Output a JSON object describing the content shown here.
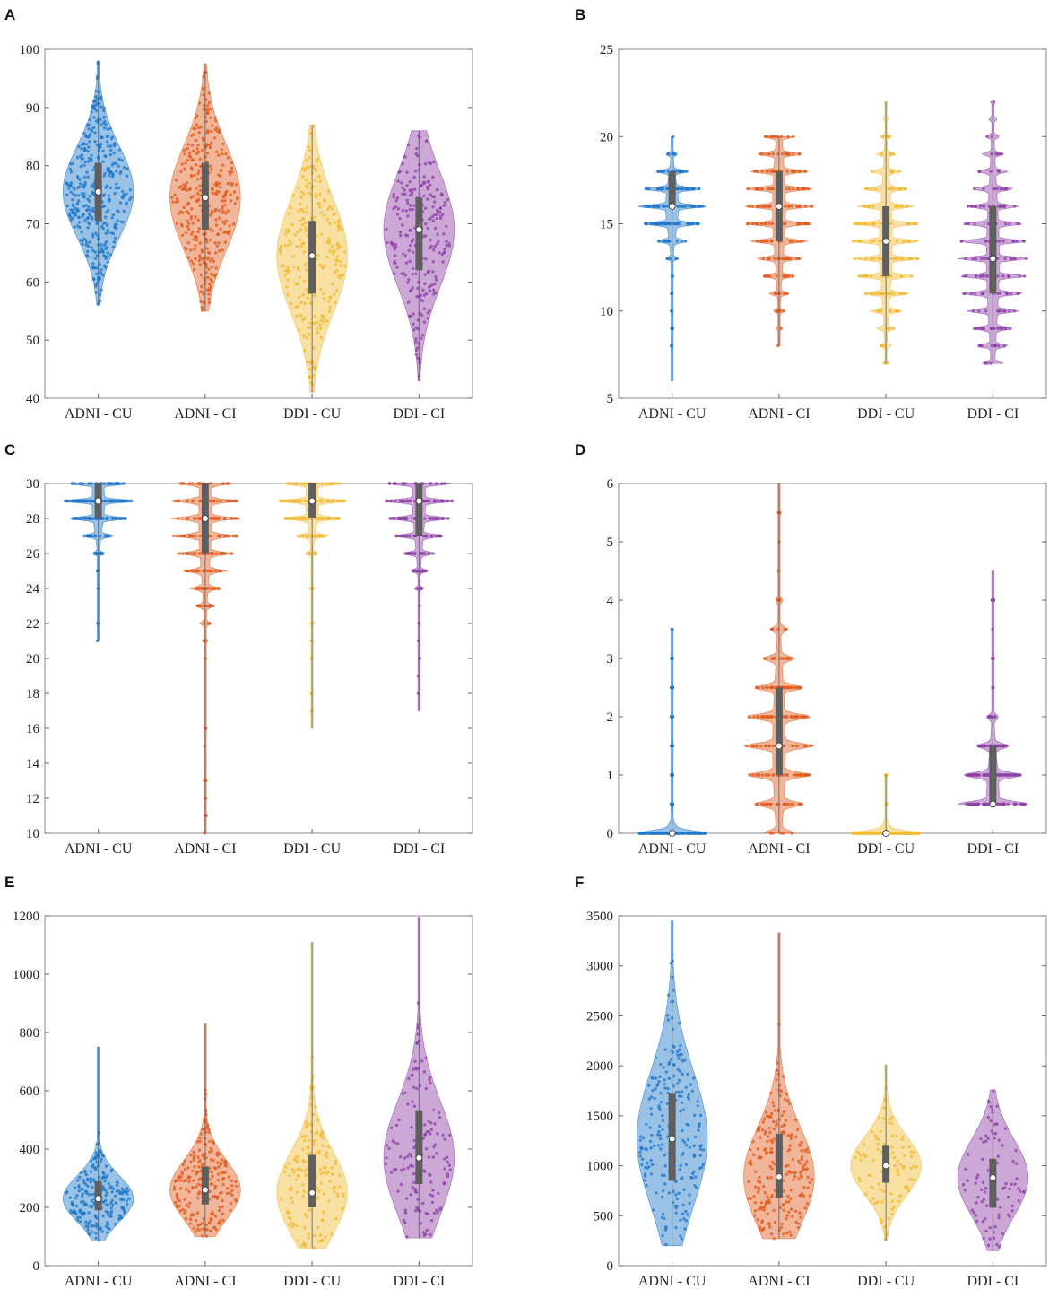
{
  "colors": {
    "ADNI - CU": "#1f77c8",
    "ADNI - CI": "#e05a1c",
    "DDI - CU": "#f0b930",
    "DDI - CI": "#8e3fa6",
    "box": "#5f5f5f"
  },
  "chart_data": [
    {
      "type": "violin",
      "panel": "A",
      "categories": [
        "ADNI - CU",
        "ADNI - CI",
        "DDI - CU",
        "DDI - CI"
      ],
      "ylim": [
        40,
        100
      ],
      "yticks": [
        40,
        50,
        60,
        70,
        80,
        90,
        100
      ],
      "series": [
        {
          "name": "ADNI - CU",
          "min": 56,
          "q1": 70.5,
          "median": 75.5,
          "q3": 80.5,
          "max": 98,
          "discrete": false,
          "density": 380
        },
        {
          "name": "ADNI - CI",
          "min": 55,
          "q1": 69,
          "median": 74.5,
          "q3": 80.5,
          "max": 97.5,
          "discrete": false,
          "density": 340
        },
        {
          "name": "DDI - CU",
          "min": 41,
          "q1": 58,
          "median": 64.5,
          "q3": 70.5,
          "max": 87,
          "discrete": false,
          "density": 250
        },
        {
          "name": "DDI - CI",
          "min": 43,
          "q1": 62,
          "median": 69,
          "q3": 74.5,
          "max": 86,
          "discrete": false,
          "density": 240
        }
      ]
    },
    {
      "type": "violin",
      "panel": "B",
      "categories": [
        "ADNI - CU",
        "ADNI - CI",
        "DDI - CU",
        "DDI - CI"
      ],
      "ylim": [
        5,
        25
      ],
      "yticks": [
        5,
        10,
        15,
        20,
        25
      ],
      "series": [
        {
          "name": "ADNI - CU",
          "min": 6,
          "q1": 16,
          "median": 16,
          "q3": 18,
          "max": 20,
          "discrete": true,
          "step": 1,
          "density": 200
        },
        {
          "name": "ADNI - CI",
          "min": 8,
          "q1": 14,
          "median": 16,
          "q3": 18,
          "max": 20,
          "discrete": true,
          "step": 1,
          "density": 200
        },
        {
          "name": "DDI - CU",
          "min": 7,
          "q1": 12,
          "median": 14,
          "q3": 16,
          "max": 22,
          "discrete": true,
          "step": 1,
          "density": 180
        },
        {
          "name": "DDI - CI",
          "min": 7,
          "q1": 11,
          "median": 13,
          "q3": 16,
          "max": 22,
          "discrete": true,
          "step": 1,
          "density": 180
        }
      ]
    },
    {
      "type": "violin",
      "panel": "C",
      "categories": [
        "ADNI - CU",
        "ADNI - CI",
        "DDI - CU",
        "DDI - CI"
      ],
      "ylim": [
        10,
        30
      ],
      "yticks": [
        10,
        12,
        14,
        16,
        18,
        20,
        22,
        24,
        26,
        28,
        30
      ],
      "series": [
        {
          "name": "ADNI - CU",
          "min": 21,
          "q1": 28,
          "median": 29,
          "q3": 30,
          "max": 30,
          "discrete": true,
          "step": 1,
          "density": 200
        },
        {
          "name": "ADNI - CI",
          "min": 10,
          "q1": 26,
          "median": 28,
          "q3": 30,
          "max": 30,
          "discrete": true,
          "step": 1,
          "density": 200
        },
        {
          "name": "DDI - CU",
          "min": 16,
          "q1": 28,
          "median": 29,
          "q3": 30,
          "max": 30,
          "discrete": true,
          "step": 1,
          "density": 180
        },
        {
          "name": "DDI - CI",
          "min": 17,
          "q1": 27,
          "median": 29,
          "q3": 30,
          "max": 30,
          "discrete": true,
          "step": 1,
          "density": 180
        }
      ]
    },
    {
      "type": "violin",
      "panel": "D",
      "categories": [
        "ADNI - CU",
        "ADNI - CI",
        "DDI - CU",
        "DDI - CI"
      ],
      "ylim": [
        0,
        6
      ],
      "yticks": [
        0,
        1,
        2,
        3,
        4,
        5,
        6
      ],
      "series": [
        {
          "name": "ADNI - CU",
          "min": 0,
          "q1": 0,
          "median": 0,
          "q3": 0,
          "max": 3.5,
          "discrete": true,
          "step": 0.5,
          "density": 200
        },
        {
          "name": "ADNI - CI",
          "min": 0,
          "q1": 1,
          "median": 1.5,
          "q3": 2.5,
          "max": 6,
          "discrete": true,
          "step": 0.5,
          "density": 200
        },
        {
          "name": "DDI - CU",
          "min": 0,
          "q1": 0,
          "median": 0,
          "q3": 0,
          "max": 1,
          "discrete": true,
          "step": 0.5,
          "density": 180
        },
        {
          "name": "DDI - CI",
          "min": 0.5,
          "q1": 0.5,
          "median": 0.5,
          "q3": 1.5,
          "max": 4.5,
          "discrete": true,
          "step": 0.5,
          "density": 180
        }
      ]
    },
    {
      "type": "violin",
      "panel": "E",
      "categories": [
        "ADNI - CU",
        "ADNI - CI",
        "DDI - CU",
        "DDI - CI"
      ],
      "ylim": [
        0,
        1200
      ],
      "yticks": [
        0,
        200,
        400,
        600,
        800,
        1000,
        1200
      ],
      "series": [
        {
          "name": "ADNI - CU",
          "min": 85,
          "q1": 190,
          "median": 230,
          "q3": 290,
          "max": 750,
          "discrete": false,
          "density": 220
        },
        {
          "name": "ADNI - CI",
          "min": 100,
          "q1": 210,
          "median": 260,
          "q3": 340,
          "max": 830,
          "discrete": false,
          "density": 220
        },
        {
          "name": "DDI - CU",
          "min": 60,
          "q1": 200,
          "median": 250,
          "q3": 380,
          "max": 1110,
          "discrete": false,
          "density": 150
        },
        {
          "name": "DDI - CI",
          "min": 95,
          "q1": 280,
          "median": 370,
          "q3": 530,
          "max": 1195,
          "discrete": false,
          "density": 150
        }
      ]
    },
    {
      "type": "violin",
      "panel": "F",
      "categories": [
        "ADNI - CU",
        "ADNI - CI",
        "DDI - CU",
        "DDI - CI"
      ],
      "ylim": [
        0,
        3500
      ],
      "yticks": [
        0,
        500,
        1000,
        1500,
        2000,
        2500,
        3000,
        3500
      ],
      "series": [
        {
          "name": "ADNI - CU",
          "min": 200,
          "q1": 850,
          "median": 1270,
          "q3": 1720,
          "max": 3450,
          "discrete": false,
          "density": 230
        },
        {
          "name": "ADNI - CI",
          "min": 270,
          "q1": 680,
          "median": 890,
          "q3": 1320,
          "max": 3330,
          "discrete": false,
          "density": 230
        },
        {
          "name": "DDI - CU",
          "min": 250,
          "q1": 830,
          "median": 1000,
          "q3": 1200,
          "max": 2010,
          "discrete": false,
          "density": 90
        },
        {
          "name": "DDI - CI",
          "min": 150,
          "q1": 580,
          "median": 880,
          "q3": 1070,
          "max": 1760,
          "discrete": false,
          "density": 90
        }
      ]
    }
  ]
}
